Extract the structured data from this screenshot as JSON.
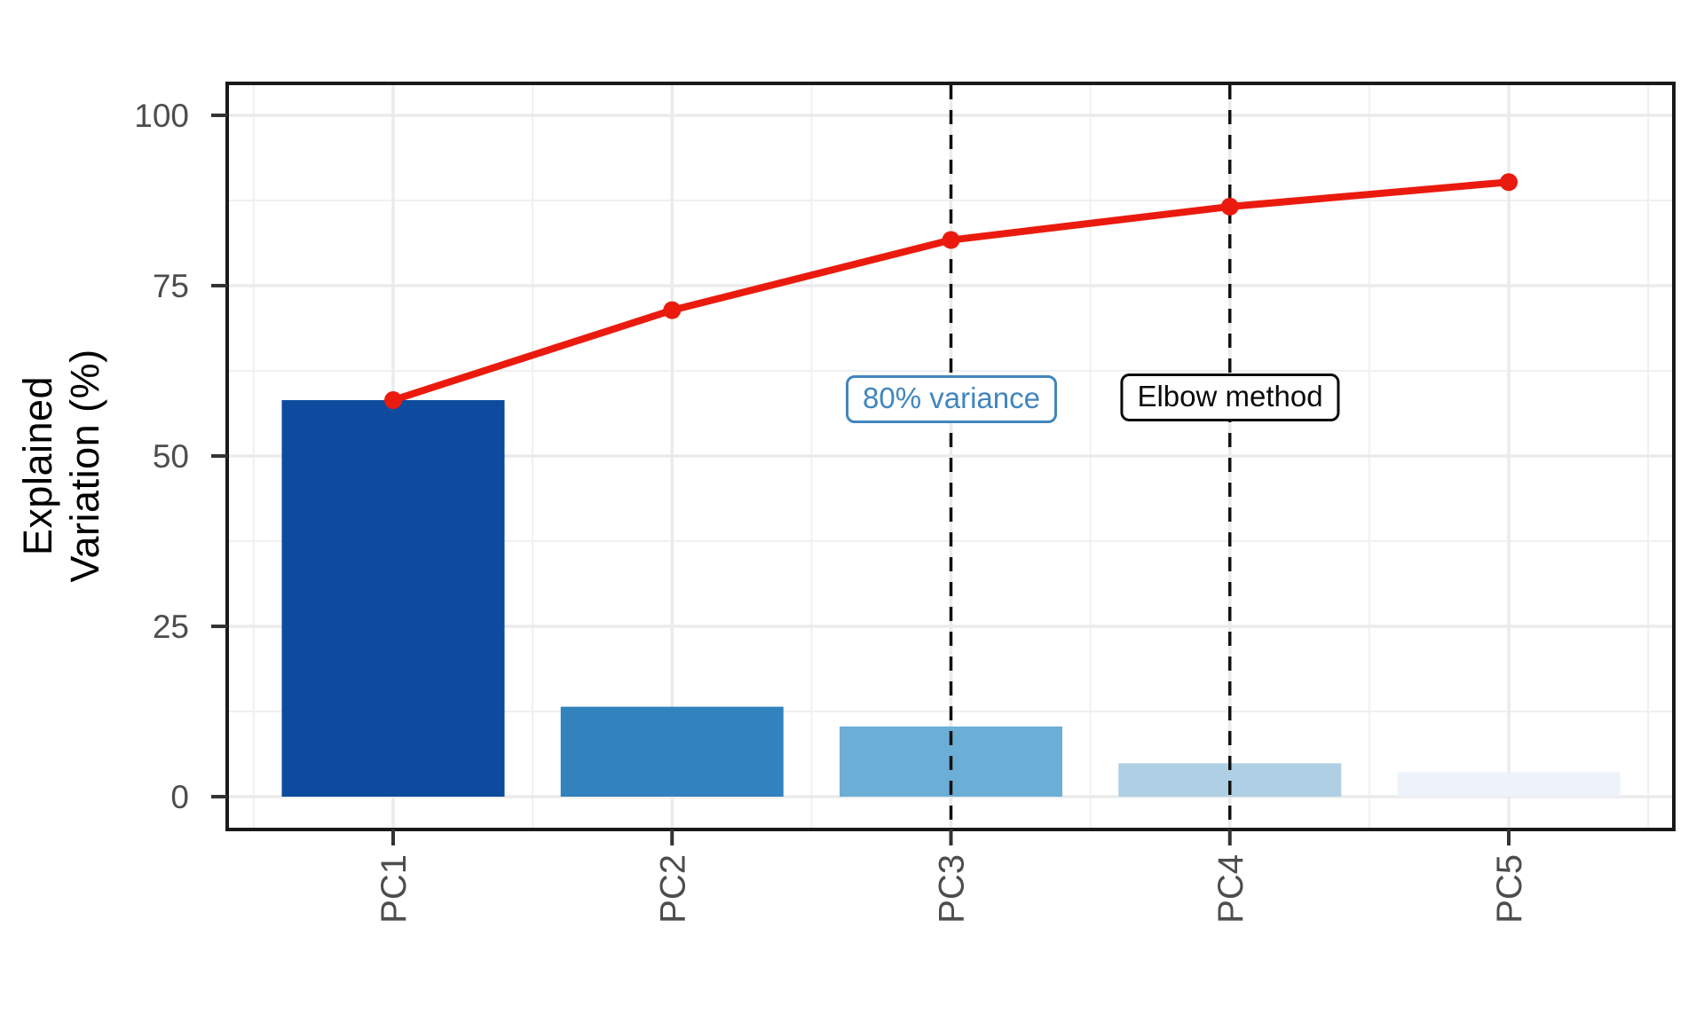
{
  "figure": {
    "background": "#ffffff"
  },
  "chart_data": {
    "type": "bar",
    "subtype": "pareto-scree-plot",
    "title": "",
    "xlabel": "",
    "ylabel": "Explained Variation (%)",
    "ylabel_line1": "Explained",
    "ylabel_line2": "Variation (%)",
    "categories": [
      "PC1",
      "PC2",
      "PC3",
      "PC4",
      "PC5"
    ],
    "values": [
      58.2,
      13.2,
      10.3,
      4.9,
      3.6
    ],
    "series": [
      {
        "name": "explained-variation-bars",
        "type": "bar",
        "values": [
          58.2,
          13.2,
          10.3,
          4.9,
          3.6
        ]
      },
      {
        "name": "cumulative-line",
        "type": "line",
        "values": [
          58.2,
          71.4,
          81.7,
          86.6,
          90.2
        ]
      }
    ],
    "y_ticks": [
      0,
      25,
      50,
      75,
      100
    ],
    "y_minor_ticks": [
      12.5,
      37.5,
      62.5,
      87.5
    ],
    "ylim": [
      -5,
      105
    ],
    "grid": "on",
    "legend": "none",
    "annotations": [
      {
        "label": "80% variance",
        "category": "PC3",
        "category_index": 2,
        "line_style": "dashed",
        "color": "#4186BE"
      },
      {
        "label": "Elbow method",
        "category": "PC4",
        "category_index": 3,
        "line_style": "dashed",
        "color": "#0a0a0a"
      }
    ]
  },
  "colors": {
    "bar_fills": [
      "#0C4B9E",
      "#3182BD",
      "#6BAED6",
      "#AFCFE4",
      "#EDF2FB"
    ],
    "cumulative_line": "#EA1B0E",
    "grid_major": "#EBEBEB",
    "grid_minor": "#F0F0F0",
    "panel_border": "#1A1A1A",
    "tick_mark": "#333333",
    "tick_label": "#4D4D4D",
    "dashed_rule": "#111111",
    "annotation_blue": "#4186BE",
    "annotation_black": "#0a0a0a"
  }
}
